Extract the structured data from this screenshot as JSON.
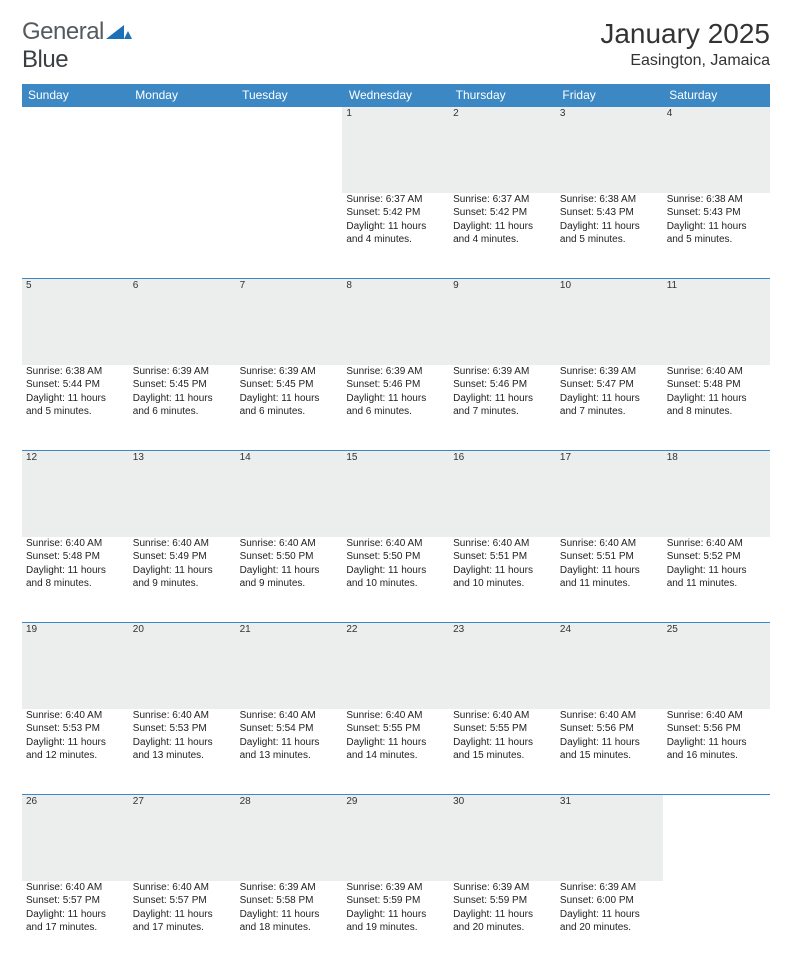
{
  "logo": {
    "word1": "General",
    "word2": "Blue"
  },
  "title": "January 2025",
  "location": "Easington, Jamaica",
  "colors": {
    "header_bg": "#3b88c4",
    "header_text": "#ffffff",
    "cell_border": "#3b88c4",
    "daynum_bg": "#eceded",
    "logo_blue": "#1d6fb8"
  },
  "daysOfWeek": [
    "Sunday",
    "Monday",
    "Tuesday",
    "Wednesday",
    "Thursday",
    "Friday",
    "Saturday"
  ],
  "weeks": [
    [
      null,
      null,
      null,
      {
        "n": "1",
        "sr": "6:37 AM",
        "ss": "5:42 PM",
        "dl": "11 hours and 4 minutes."
      },
      {
        "n": "2",
        "sr": "6:37 AM",
        "ss": "5:42 PM",
        "dl": "11 hours and 4 minutes."
      },
      {
        "n": "3",
        "sr": "6:38 AM",
        "ss": "5:43 PM",
        "dl": "11 hours and 5 minutes."
      },
      {
        "n": "4",
        "sr": "6:38 AM",
        "ss": "5:43 PM",
        "dl": "11 hours and 5 minutes."
      }
    ],
    [
      {
        "n": "5",
        "sr": "6:38 AM",
        "ss": "5:44 PM",
        "dl": "11 hours and 5 minutes."
      },
      {
        "n": "6",
        "sr": "6:39 AM",
        "ss": "5:45 PM",
        "dl": "11 hours and 6 minutes."
      },
      {
        "n": "7",
        "sr": "6:39 AM",
        "ss": "5:45 PM",
        "dl": "11 hours and 6 minutes."
      },
      {
        "n": "8",
        "sr": "6:39 AM",
        "ss": "5:46 PM",
        "dl": "11 hours and 6 minutes."
      },
      {
        "n": "9",
        "sr": "6:39 AM",
        "ss": "5:46 PM",
        "dl": "11 hours and 7 minutes."
      },
      {
        "n": "10",
        "sr": "6:39 AM",
        "ss": "5:47 PM",
        "dl": "11 hours and 7 minutes."
      },
      {
        "n": "11",
        "sr": "6:40 AM",
        "ss": "5:48 PM",
        "dl": "11 hours and 8 minutes."
      }
    ],
    [
      {
        "n": "12",
        "sr": "6:40 AM",
        "ss": "5:48 PM",
        "dl": "11 hours and 8 minutes."
      },
      {
        "n": "13",
        "sr": "6:40 AM",
        "ss": "5:49 PM",
        "dl": "11 hours and 9 minutes."
      },
      {
        "n": "14",
        "sr": "6:40 AM",
        "ss": "5:50 PM",
        "dl": "11 hours and 9 minutes."
      },
      {
        "n": "15",
        "sr": "6:40 AM",
        "ss": "5:50 PM",
        "dl": "11 hours and 10 minutes."
      },
      {
        "n": "16",
        "sr": "6:40 AM",
        "ss": "5:51 PM",
        "dl": "11 hours and 10 minutes."
      },
      {
        "n": "17",
        "sr": "6:40 AM",
        "ss": "5:51 PM",
        "dl": "11 hours and 11 minutes."
      },
      {
        "n": "18",
        "sr": "6:40 AM",
        "ss": "5:52 PM",
        "dl": "11 hours and 11 minutes."
      }
    ],
    [
      {
        "n": "19",
        "sr": "6:40 AM",
        "ss": "5:53 PM",
        "dl": "11 hours and 12 minutes."
      },
      {
        "n": "20",
        "sr": "6:40 AM",
        "ss": "5:53 PM",
        "dl": "11 hours and 13 minutes."
      },
      {
        "n": "21",
        "sr": "6:40 AM",
        "ss": "5:54 PM",
        "dl": "11 hours and 13 minutes."
      },
      {
        "n": "22",
        "sr": "6:40 AM",
        "ss": "5:55 PM",
        "dl": "11 hours and 14 minutes."
      },
      {
        "n": "23",
        "sr": "6:40 AM",
        "ss": "5:55 PM",
        "dl": "11 hours and 15 minutes."
      },
      {
        "n": "24",
        "sr": "6:40 AM",
        "ss": "5:56 PM",
        "dl": "11 hours and 15 minutes."
      },
      {
        "n": "25",
        "sr": "6:40 AM",
        "ss": "5:56 PM",
        "dl": "11 hours and 16 minutes."
      }
    ],
    [
      {
        "n": "26",
        "sr": "6:40 AM",
        "ss": "5:57 PM",
        "dl": "11 hours and 17 minutes."
      },
      {
        "n": "27",
        "sr": "6:40 AM",
        "ss": "5:57 PM",
        "dl": "11 hours and 17 minutes."
      },
      {
        "n": "28",
        "sr": "6:39 AM",
        "ss": "5:58 PM",
        "dl": "11 hours and 18 minutes."
      },
      {
        "n": "29",
        "sr": "6:39 AM",
        "ss": "5:59 PM",
        "dl": "11 hours and 19 minutes."
      },
      {
        "n": "30",
        "sr": "6:39 AM",
        "ss": "5:59 PM",
        "dl": "11 hours and 20 minutes."
      },
      {
        "n": "31",
        "sr": "6:39 AM",
        "ss": "6:00 PM",
        "dl": "11 hours and 20 minutes."
      },
      null
    ]
  ],
  "labels": {
    "sunrise": "Sunrise:",
    "sunset": "Sunset:",
    "daylight": "Daylight:"
  }
}
